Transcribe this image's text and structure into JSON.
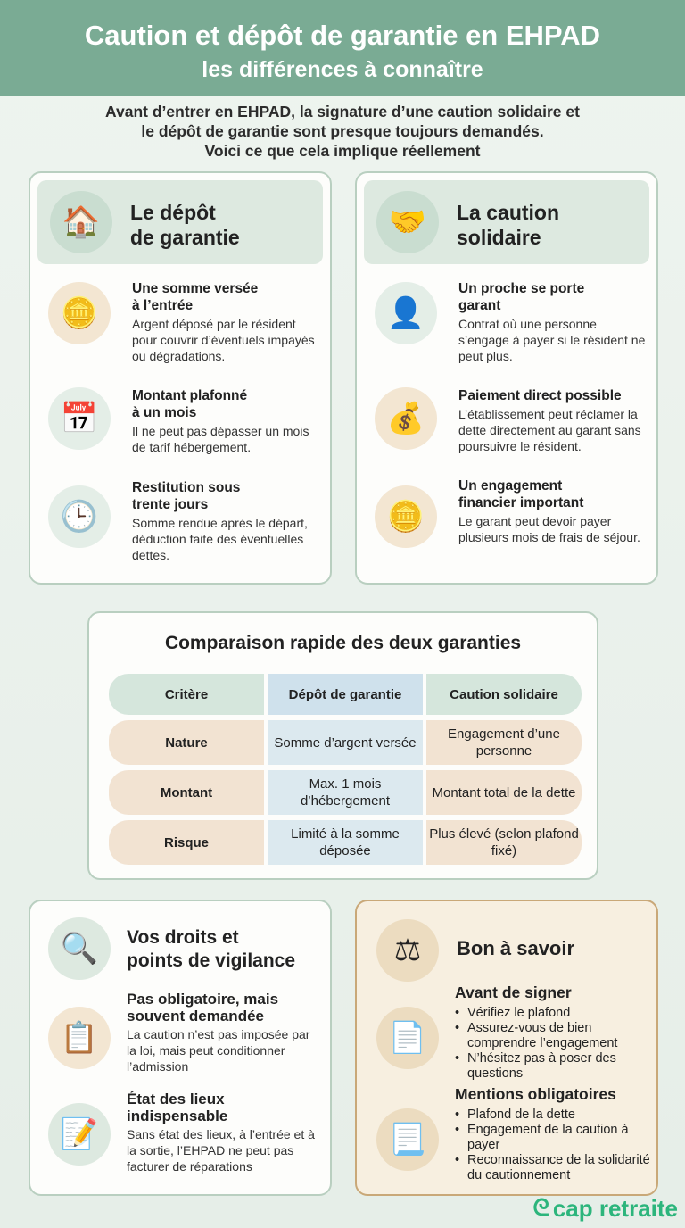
{
  "header": {
    "title": "Caution et dépôt de garantie en EHPAD",
    "subtitle": "les différences à connaître"
  },
  "intro": [
    "Avant d’entrer en EHPAD, la signature d’une caution solidaire et",
    "le dépôt de garantie sont presque toujours demandés.",
    "Voici ce que cela implique réellement"
  ],
  "depot": {
    "title": [
      "Le dépôt",
      "de garantie"
    ],
    "icon": "house-safe-icon",
    "items": [
      {
        "icon": "hand-coin-icon",
        "title": [
          "Une somme versée",
          "à l’entrée"
        ],
        "text": "Argent déposé par le résident pour couvrir d’éventuels impayés ou dégradations."
      },
      {
        "icon": "calendar-euro-icon",
        "title": [
          "Montant plafonné",
          "à un mois"
        ],
        "text": "Il ne peut pas dépasser un mois de tarif hébergement."
      },
      {
        "icon": "clock-refresh-icon",
        "title": [
          "Restitution sous",
          "trente jours"
        ],
        "text": "Somme rendue après le départ, déduction faite des éventuelles dettes."
      }
    ]
  },
  "caution": {
    "title": [
      "La caution",
      "solidaire"
    ],
    "icon": "handshake-icon",
    "items": [
      {
        "icon": "person-shield-icon",
        "title": [
          "Un proche se porte",
          "garant"
        ],
        "text": "Contrat où une personne s’engage à payer si le résident ne peut plus."
      },
      {
        "icon": "document-money-bag-icon",
        "title": [
          "Paiement direct possible"
        ],
        "text": "L’établissement peut réclamer la dette directement au garant sans poursuivre le résident."
      },
      {
        "icon": "coins-weight-icon",
        "title": [
          "Un engagement",
          "financier important"
        ],
        "text": "Le garant peut devoir payer plusieurs mois de frais de séjour."
      }
    ]
  },
  "comparison": {
    "title": "Comparaison rapide des deux garanties",
    "headers": [
      "Critère",
      "Dépôt de garantie",
      "Caution solidaire"
    ],
    "rows": [
      [
        "Nature",
        "Somme d’argent versée",
        "Engagement d’une personne"
      ],
      [
        "Montant",
        "Max. 1 mois d’hébergement",
        "Montant total de la dette"
      ],
      [
        "Risque",
        "Limité à la somme déposée",
        "Plus élevé (selon plafond fixé)"
      ]
    ]
  },
  "droits": {
    "title": [
      "Vos droits et",
      "points de vigilance"
    ],
    "items": [
      {
        "icon": "clipboard-checklist-icon",
        "title": [
          "Pas obligatoire, mais",
          "souvent demandée"
        ],
        "text": "La caution n’est pas imposée par la loi, mais peut conditionner l’admission"
      },
      {
        "icon": "document-pen-icon",
        "title": [
          "État des lieux",
          "indispensable"
        ],
        "text": "Sans état des lieux, à l’entrée et à la sortie, l’EHPAD ne peut pas facturer de réparations"
      }
    ]
  },
  "bon": {
    "title": "Bon à savoir",
    "sections": [
      {
        "title": "Avant de signer",
        "bullets": [
          "Vérifiez le plafond",
          "Assurez-vous de bien comprendre l’engagement",
          "N’hésitez pas à poser des questions"
        ]
      },
      {
        "title": "Mentions obligatoires",
        "bullets": [
          "Plafond de la dette",
          "Engagement de la caution à payer",
          "Reconnaissance de la solidarité du cautionnement"
        ]
      }
    ]
  },
  "logo": "cap retraite",
  "colors": {
    "header": "#7aab94",
    "brand": "#2cb57c",
    "band": "#dde9e0",
    "beige": "#f7efe0"
  }
}
